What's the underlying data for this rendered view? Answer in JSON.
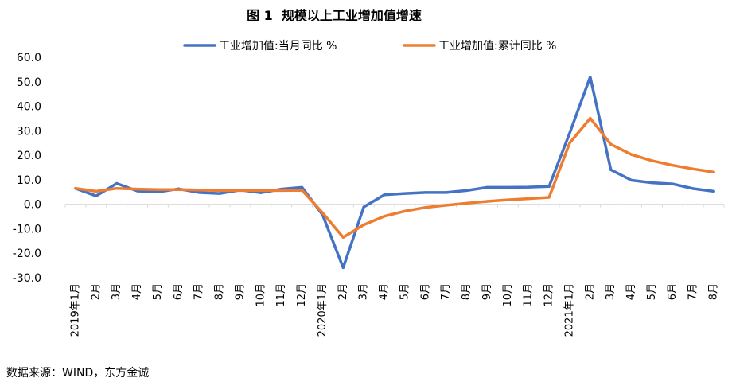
{
  "title": "图 1  规模以上工业增加值增速",
  "source": "数据来源：WIND，东方金诚",
  "chart_data": {
    "type": "line",
    "title": "图 1  规模以上工业增加值增速",
    "ylim": [
      -30,
      60
    ],
    "yticks": [
      "60.0",
      "50.0",
      "40.0",
      "30.0",
      "20.0",
      "10.0",
      "0.0",
      "-10.0",
      "-20.0",
      "-30.0"
    ],
    "ytick_values": [
      60,
      50,
      40,
      30,
      20,
      10,
      0,
      -10,
      -20,
      -30
    ],
    "categories": [
      "2019年1月",
      "2月",
      "3月",
      "4月",
      "5月",
      "6月",
      "7月",
      "8月",
      "9月",
      "10月",
      "11月",
      "12月",
      "2020年1月",
      "2月",
      "3月",
      "4月",
      "5月",
      "6月",
      "7月",
      "8月",
      "9月",
      "10月",
      "11月",
      "12月",
      "2021年1月",
      "2月",
      "3月",
      "4月",
      "5月",
      "6月",
      "7月",
      "8月"
    ],
    "legend_position": "top",
    "grid": false,
    "series": [
      {
        "name": "工业增加值:当月同比 %",
        "color": "#4472C4",
        "values": [
          6.5,
          3.4,
          8.5,
          5.4,
          5.0,
          6.3,
          4.8,
          4.4,
          5.8,
          4.7,
          6.2,
          6.9,
          -4.3,
          -25.9,
          -1.1,
          3.9,
          4.4,
          4.8,
          4.8,
          5.6,
          6.9,
          6.9,
          7.0,
          7.3,
          29.0,
          52.0,
          14.1,
          9.8,
          8.8,
          8.3,
          6.4,
          5.3
        ]
      },
      {
        "name": "工业增加值:累计同比 %",
        "color": "#ED7D31",
        "values": [
          6.5,
          5.3,
          6.5,
          6.2,
          6.0,
          6.0,
          5.8,
          5.6,
          5.6,
          5.6,
          5.6,
          5.7,
          -3.5,
          -13.5,
          -8.4,
          -4.9,
          -2.8,
          -1.3,
          -0.4,
          0.4,
          1.2,
          1.8,
          2.3,
          2.8,
          25.0,
          35.1,
          24.5,
          20.3,
          17.8,
          15.9,
          14.4,
          13.1
        ]
      }
    ]
  }
}
